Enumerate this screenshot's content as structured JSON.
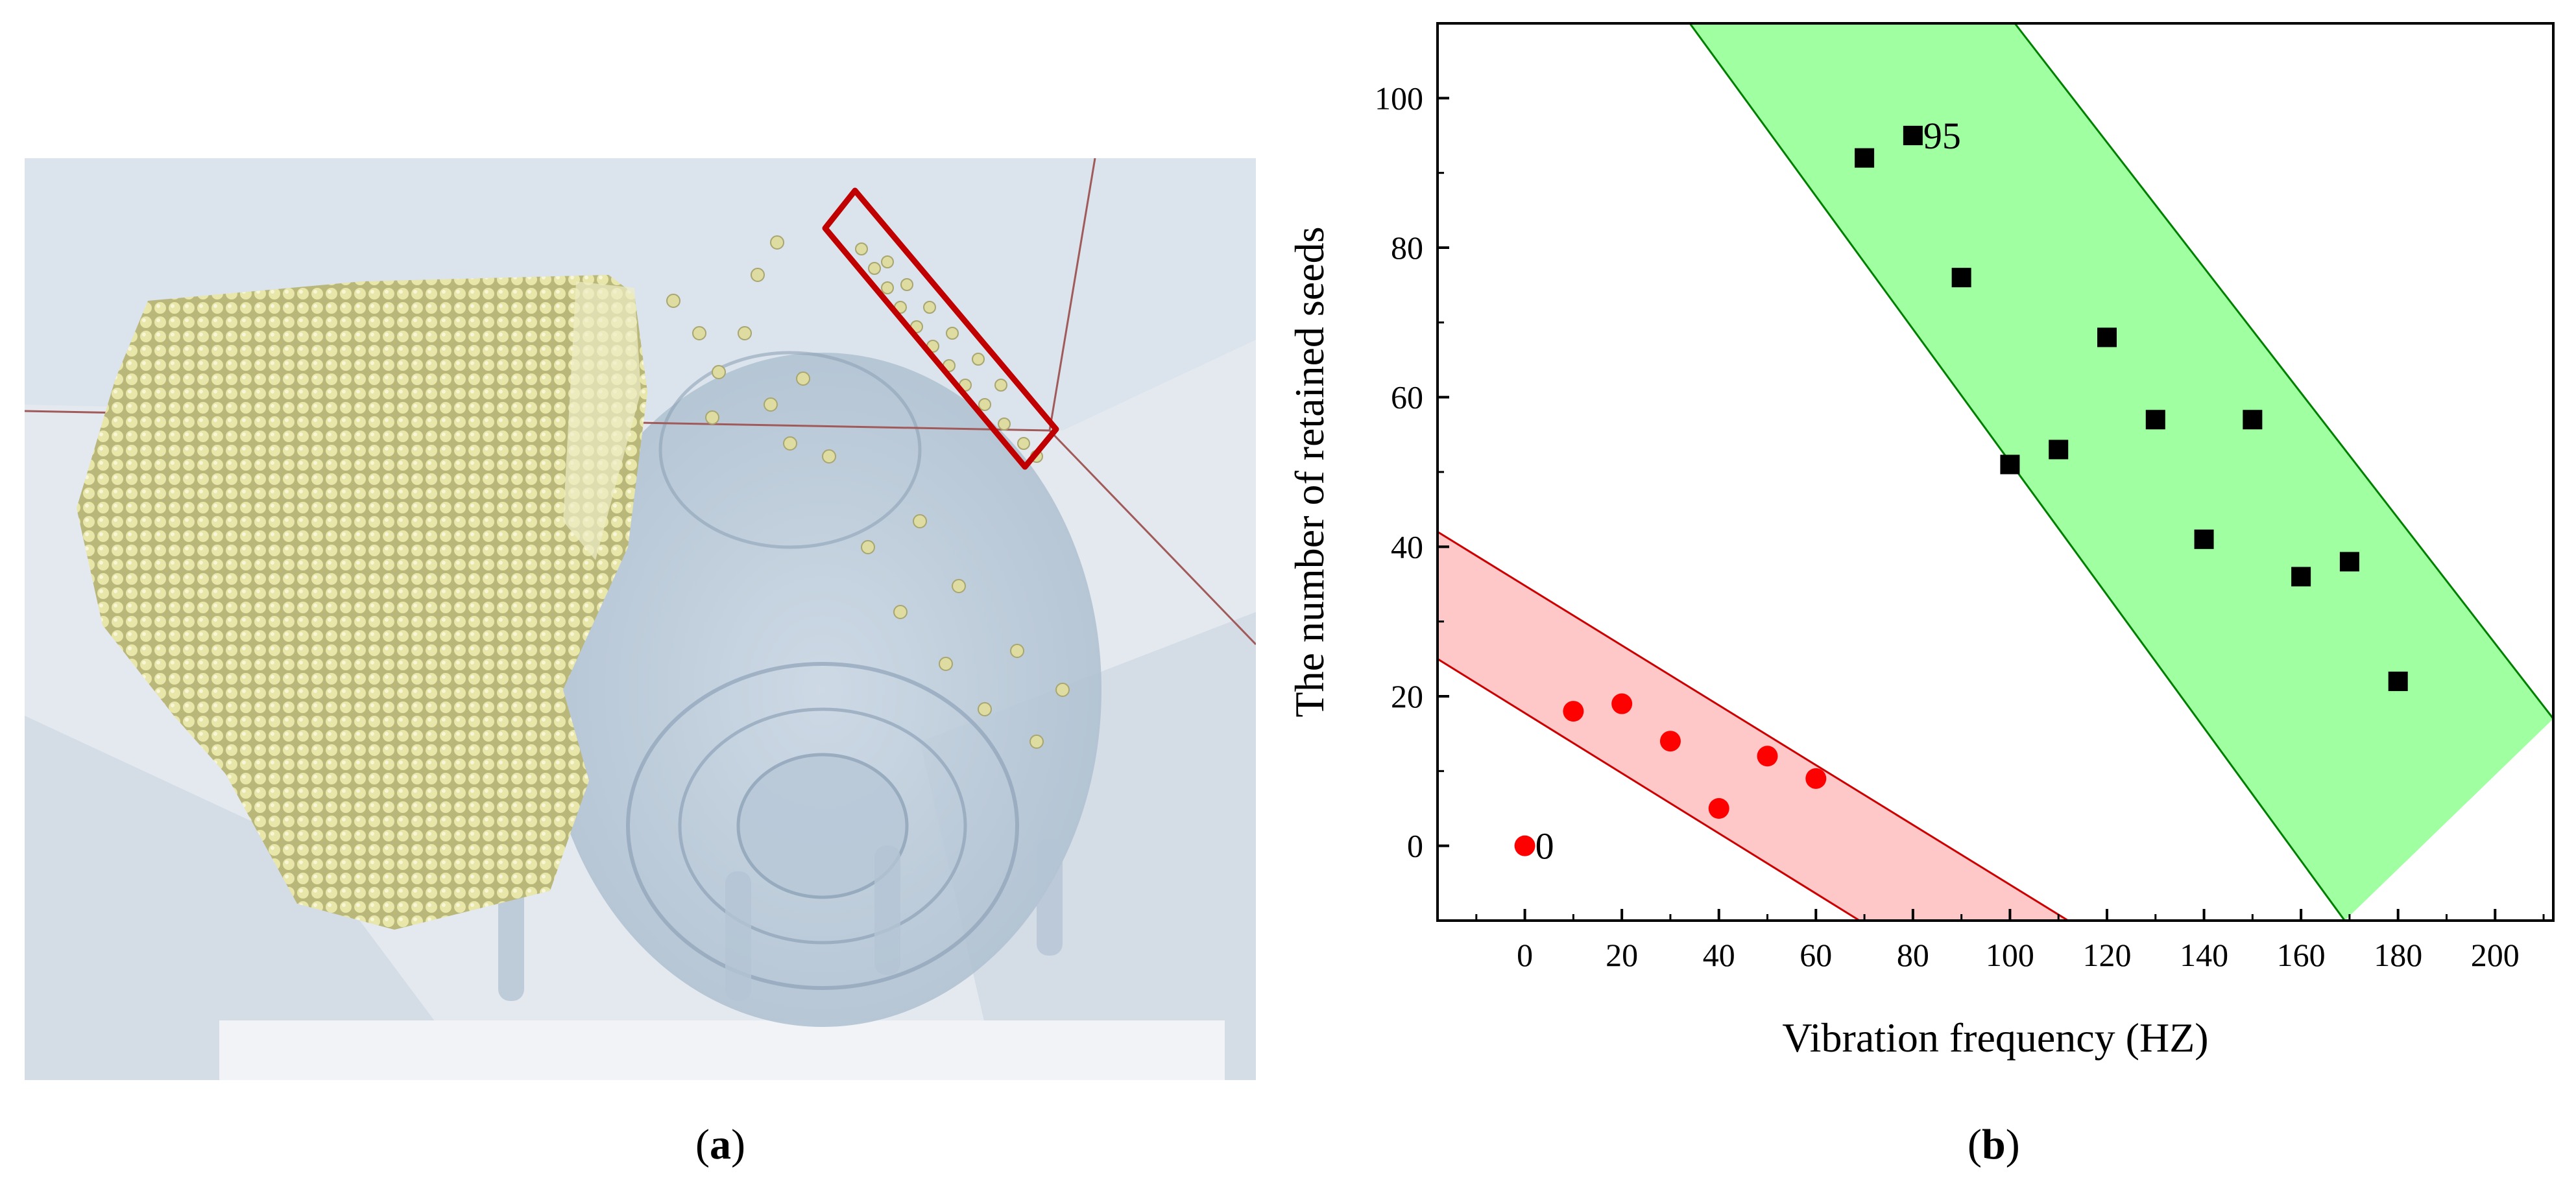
{
  "panel_a": {
    "description_label": "simulation",
    "caption": {
      "open": "(",
      "letter": "a",
      "close": ")"
    }
  },
  "panel_b": {
    "caption": {
      "open": "(",
      "letter": "b",
      "close": ")"
    }
  },
  "chart_data": {
    "type": "scatter",
    "title": "",
    "xlabel": "Vibration frequency (HZ)",
    "ylabel": "The number of retained seeds",
    "xlim": [
      -18,
      212
    ],
    "ylim": [
      -10,
      110
    ],
    "x_ticks": [
      0,
      20,
      40,
      60,
      80,
      100,
      120,
      140,
      160,
      180,
      200
    ],
    "y_ticks": [
      0,
      20,
      40,
      60,
      80,
      100
    ],
    "series": [
      {
        "name": "red-circles",
        "marker": "circle",
        "color": "#ff0000",
        "points": [
          [
            0,
            0
          ],
          [
            10,
            18
          ],
          [
            20,
            19
          ],
          [
            30,
            14
          ],
          [
            40,
            5
          ],
          [
            50,
            12
          ],
          [
            60,
            9
          ]
        ]
      },
      {
        "name": "black-squares",
        "marker": "square",
        "color": "#000000",
        "points": [
          [
            70,
            92
          ],
          [
            80,
            95
          ],
          [
            90,
            76
          ],
          [
            100,
            51
          ],
          [
            110,
            53
          ],
          [
            120,
            68
          ],
          [
            130,
            57
          ],
          [
            140,
            41
          ],
          [
            150,
            57
          ],
          [
            160,
            36
          ],
          [
            170,
            38
          ],
          [
            180,
            22
          ]
        ]
      }
    ],
    "bands": [
      {
        "name": "red-band",
        "fill": "#ffc8c8",
        "edge": "#cc0000",
        "upper": [
          [
            -18,
            42
          ],
          [
            112,
            -10
          ]
        ],
        "lower": [
          [
            -18,
            25
          ],
          [
            69,
            -10
          ]
        ]
      },
      {
        "name": "green-band",
        "fill": "#a0ffa0",
        "edge": "#008000",
        "upper": [
          [
            101,
            110
          ],
          [
            212,
            17
          ]
        ],
        "lower": [
          [
            34,
            110
          ],
          [
            169,
            -10
          ]
        ]
      }
    ],
    "annotations": [
      {
        "text": "0",
        "x": 0,
        "y": 0
      },
      {
        "text": "95",
        "x": 80,
        "y": 95
      }
    ]
  }
}
